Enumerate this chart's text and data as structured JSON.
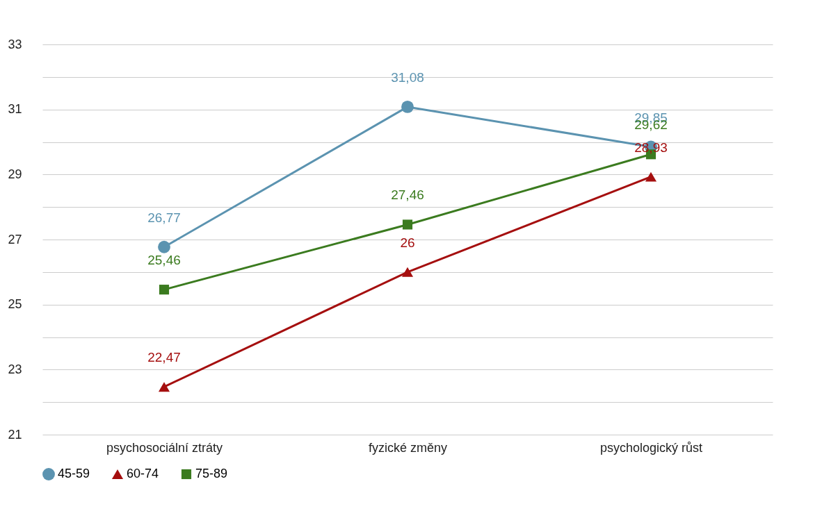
{
  "chart_data": {
    "type": "line",
    "categories": [
      "psychosociální ztráty",
      "fyzické změny",
      "psychologický růst"
    ],
    "series": [
      {
        "name": "45-59",
        "color": "#5b93b0",
        "marker": "circle",
        "values": [
          26.77,
          31.08,
          29.85
        ],
        "value_labels": [
          "26,77",
          "31,08",
          "29,85"
        ]
      },
      {
        "name": "60-74",
        "color": "#a50f0f",
        "marker": "triangle",
        "values": [
          22.47,
          26,
          28.93
        ],
        "value_labels": [
          "22,47",
          "26",
          "28,93"
        ]
      },
      {
        "name": "75-89",
        "color": "#3b7b1f",
        "marker": "square",
        "values": [
          25.46,
          27.46,
          29.62
        ],
        "value_labels": [
          "25,46",
          "27,46",
          "29,62"
        ]
      }
    ],
    "ylim": [
      21,
      33
    ],
    "yticks": [
      21,
      {
        "value": 22,
        "label": null
      },
      23,
      {
        "value": 24,
        "label": null
      },
      25,
      {
        "value": 26,
        "label": null
      },
      27,
      {
        "value": 28,
        "label": null
      },
      29,
      {
        "value": 30,
        "label": null
      },
      31,
      {
        "value": 32,
        "label": null
      },
      33
    ],
    "grid": true,
    "legend": "bottom",
    "line_style": "solid"
  }
}
